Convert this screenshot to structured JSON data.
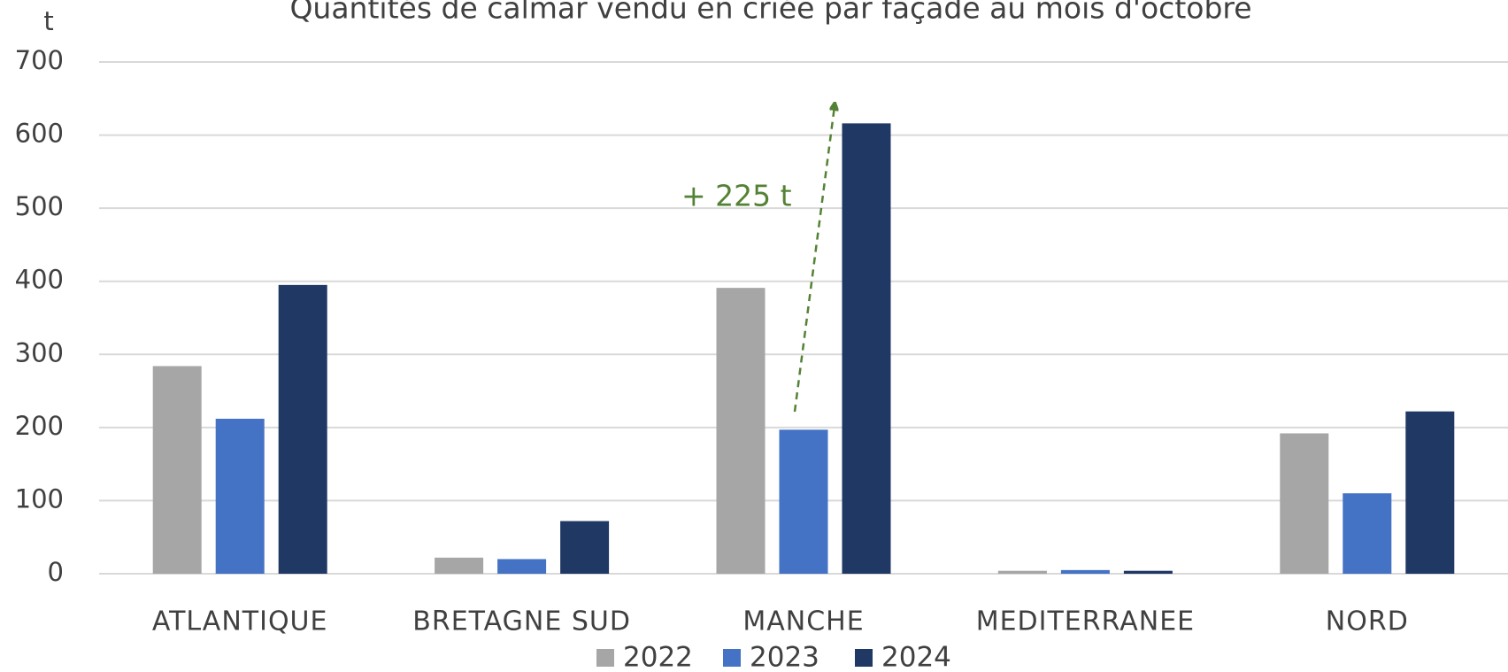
{
  "chart_data": {
    "type": "bar",
    "title": "Quantités de calmar vendu en criée par façade au mois d'octobre",
    "y_label": "t",
    "annotation": "+ 225 t",
    "categories": [
      "ATLANTIQUE",
      "BRETAGNE SUD",
      "MANCHE",
      "MEDITERRANEE",
      "NORD"
    ],
    "series": [
      {
        "name": "2022",
        "color": "#a6a6a6",
        "values": [
          284,
          22,
          391,
          4,
          192
        ]
      },
      {
        "name": "2023",
        "color": "#4472c4",
        "values": [
          212,
          20,
          197,
          5,
          110
        ]
      },
      {
        "name": "2024",
        "color": "#203864",
        "values": [
          395,
          72,
          616,
          4,
          222
        ]
      }
    ],
    "ylim": [
      0,
      700
    ],
    "yticks": [
      0,
      100,
      200,
      300,
      400,
      500,
      600,
      700
    ],
    "grid": true,
    "legend": "bottom"
  }
}
